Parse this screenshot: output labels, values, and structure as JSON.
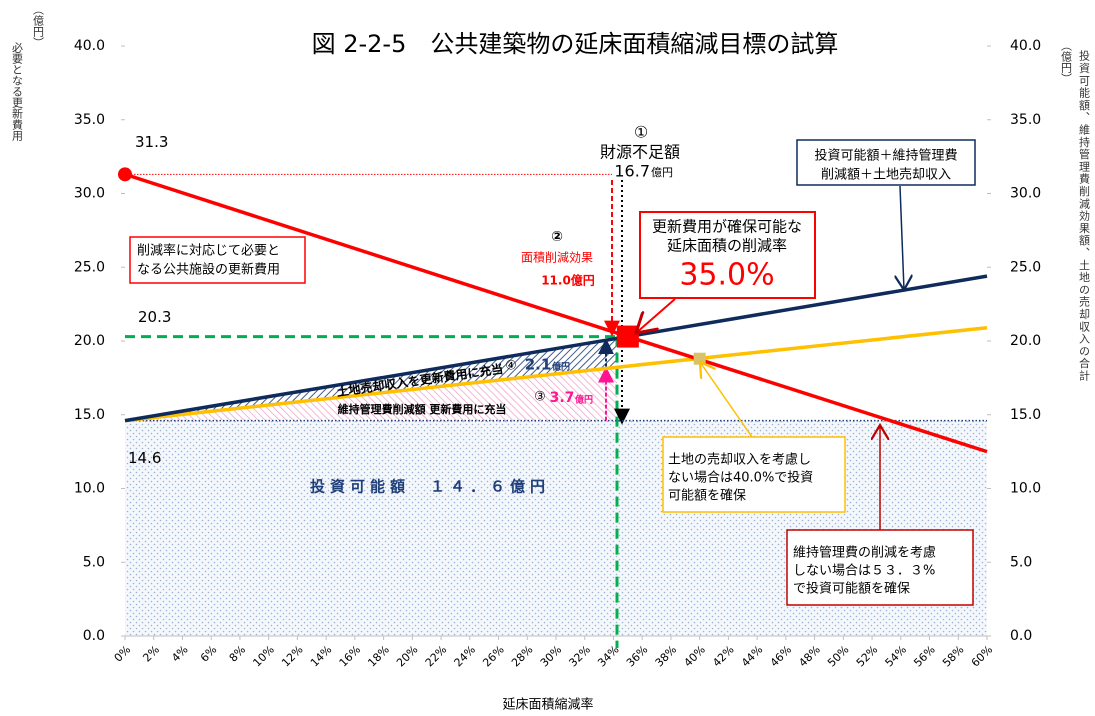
{
  "chart_data": {
    "type": "line",
    "title": "図 2-2-5　公共建築物の延床面積縮減目標の試算",
    "x_label": "延床面積縮減率",
    "y_label_unit": "（億円）",
    "y_label": "必要となる更新費用",
    "y2_label_unit": "（億円）",
    "y2_label": "投資可能額、維持管理費削減効果額、土地の売却収入の合計",
    "x": [
      0,
      35,
      60
    ],
    "xlim": [
      0,
      60
    ],
    "xticks": [
      {
        "value": 0,
        "label": "0%"
      },
      {
        "value": 2,
        "label": "2%"
      },
      {
        "value": 4,
        "label": "4%"
      },
      {
        "value": 6,
        "label": "6%"
      },
      {
        "value": 8,
        "label": "8%"
      },
      {
        "value": 10,
        "label": "10%"
      },
      {
        "value": 12,
        "label": "12%"
      },
      {
        "value": 14,
        "label": "14%"
      },
      {
        "value": 16,
        "label": "16%"
      },
      {
        "value": 18,
        "label": "18%"
      },
      {
        "value": 20,
        "label": "20%"
      },
      {
        "value": 22,
        "label": "22%"
      },
      {
        "value": 24,
        "label": "24%"
      },
      {
        "value": 26,
        "label": "26%"
      },
      {
        "value": 28,
        "label": "28%"
      },
      {
        "value": 30,
        "label": "30%"
      },
      {
        "value": 32,
        "label": "32%"
      },
      {
        "value": 34,
        "label": "34%"
      },
      {
        "value": 36,
        "label": "36%"
      },
      {
        "value": 38,
        "label": "38%"
      },
      {
        "value": 40,
        "label": "40%"
      },
      {
        "value": 42,
        "label": "42%"
      },
      {
        "value": 44,
        "label": "44%"
      },
      {
        "value": 46,
        "label": "46%"
      },
      {
        "value": 48,
        "label": "48%"
      },
      {
        "value": 50,
        "label": "50%"
      },
      {
        "value": 52,
        "label": "52%"
      },
      {
        "value": 54,
        "label": "54%"
      },
      {
        "value": 56,
        "label": "56%"
      },
      {
        "value": 58,
        "label": "58%"
      },
      {
        "value": 60,
        "label": "60%"
      }
    ],
    "ylim": [
      0,
      40
    ],
    "yticks": [
      {
        "value": 0,
        "label": "0.0"
      },
      {
        "value": 5,
        "label": "5.0"
      },
      {
        "value": 10,
        "label": "10.0"
      },
      {
        "value": 15,
        "label": "15.0"
      },
      {
        "value": 20,
        "label": "20.0"
      },
      {
        "value": 25,
        "label": "25.0"
      },
      {
        "value": 30,
        "label": "30.0"
      },
      {
        "value": 35,
        "label": "35.0"
      },
      {
        "value": 40,
        "label": "40.0"
      }
    ],
    "y2lim": [
      0,
      40
    ],
    "y2ticks": [
      {
        "value": 0,
        "label": "0.0"
      },
      {
        "value": 5,
        "label": "5.0"
      },
      {
        "value": 10,
        "label": "10.0"
      },
      {
        "value": 15,
        "label": "15.0"
      },
      {
        "value": 20,
        "label": "20.0"
      },
      {
        "value": 25,
        "label": "25.0"
      },
      {
        "value": 30,
        "label": "30.0"
      },
      {
        "value": 35,
        "label": "35.0"
      },
      {
        "value": 40,
        "label": "40.0"
      }
    ],
    "series": [
      {
        "color": "#ff0000",
        "style": "solid",
        "values": [
          31.3,
          20.3,
          12.5
        ],
        "value_labels": [
          "31.3",
          "20.3",
          null
        ]
      },
      {
        "color": "#0e2b5c",
        "style": "solid",
        "values": [
          14.6,
          20.3,
          24.4
        ]
      },
      {
        "color": "#ffc000",
        "style": "solid",
        "values": [
          14.6,
          18.3,
          20.9
        ]
      },
      {
        "color": "#1f3f7a",
        "style": "dotted",
        "values": [
          14.6,
          14.6,
          14.6
        ],
        "value_labels": [
          "14.6",
          null,
          null
        ]
      }
    ],
    "markers": [
      {
        "x": 0,
        "y": 31.3,
        "shape": "circle",
        "color": "#ff0000"
      },
      {
        "x": 35,
        "y": 20.3,
        "shape": "square",
        "color": "#ff0000"
      },
      {
        "x": 40,
        "y": 18.8,
        "shape": "square",
        "color": "#d9c36a"
      }
    ],
    "annotations": [
      "①",
      "財源不足額",
      "16.7",
      "億円",
      "②",
      "面積削減効果",
      "11.0億円",
      "更新費用が確保可能な",
      "延床面積の削減率",
      "35.0%",
      "投資可能額＋維持管理費",
      "削減額＋土地売却収入",
      "削減率に対応じて必要と",
      "なる公共施設の更新費用",
      "土地売却収入を更新費用に充当",
      "④",
      "2.1",
      "億円",
      "維持管理費削減額 更新費用に充当",
      "③",
      "3.7",
      "億円",
      "投資可能額　１４．６億円",
      "土地の売却収入を考慮し",
      "ない場合は40.0%で投資",
      "可能額を確保",
      "維持管理費の削減を考慮",
      "しない場合は５３．３%",
      "で投資可能額を確保"
    ]
  }
}
